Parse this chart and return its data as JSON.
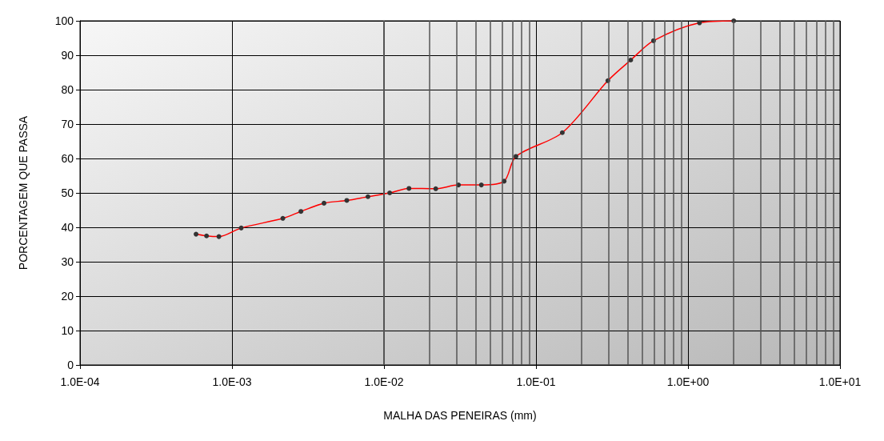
{
  "chart_data": {
    "type": "line",
    "xlabel": "MALHA DAS PENEIRAS (mm)",
    "ylabel": "PORCENTAGEM QUE PASSA",
    "log": "x",
    "grid": true,
    "marker": "circle",
    "line_style": "solid",
    "xlim": [
      0.0001,
      10
    ],
    "ylim": [
      0,
      100
    ],
    "xticks": [
      {
        "value": 0.0001,
        "label": "1.0E-04"
      },
      {
        "value": 0.001,
        "label": "1.0E-03"
      },
      {
        "value": 0.01,
        "label": "1.0E-02"
      },
      {
        "value": 0.1,
        "label": "1.0E-01"
      },
      {
        "value": 1,
        "label": "1.0E+00"
      },
      {
        "value": 10,
        "label": "1.0E+01"
      }
    ],
    "yticks": [
      0,
      10,
      20,
      30,
      40,
      50,
      60,
      70,
      80,
      90,
      100
    ],
    "series": [
      {
        "color": "#ff0000",
        "x": [
          0.00058,
          0.00068,
          0.00082,
          0.00115,
          0.00216,
          0.00284,
          0.00403,
          0.00569,
          0.00784,
          0.0109,
          0.0146,
          0.0219,
          0.0309,
          0.0437,
          0.0617,
          0.0738,
          0.149,
          0.297,
          0.42,
          0.593,
          1.19,
          2.0
        ],
        "values": [
          38,
          37.5,
          37.3,
          39.8,
          42.6,
          44.6,
          47,
          47.8,
          48.9,
          50,
          51.3,
          51.2,
          52.3,
          52.3,
          53.4,
          60.6,
          67.5,
          82.6,
          88.6,
          94.2,
          99.4,
          100
        ]
      }
    ]
  }
}
